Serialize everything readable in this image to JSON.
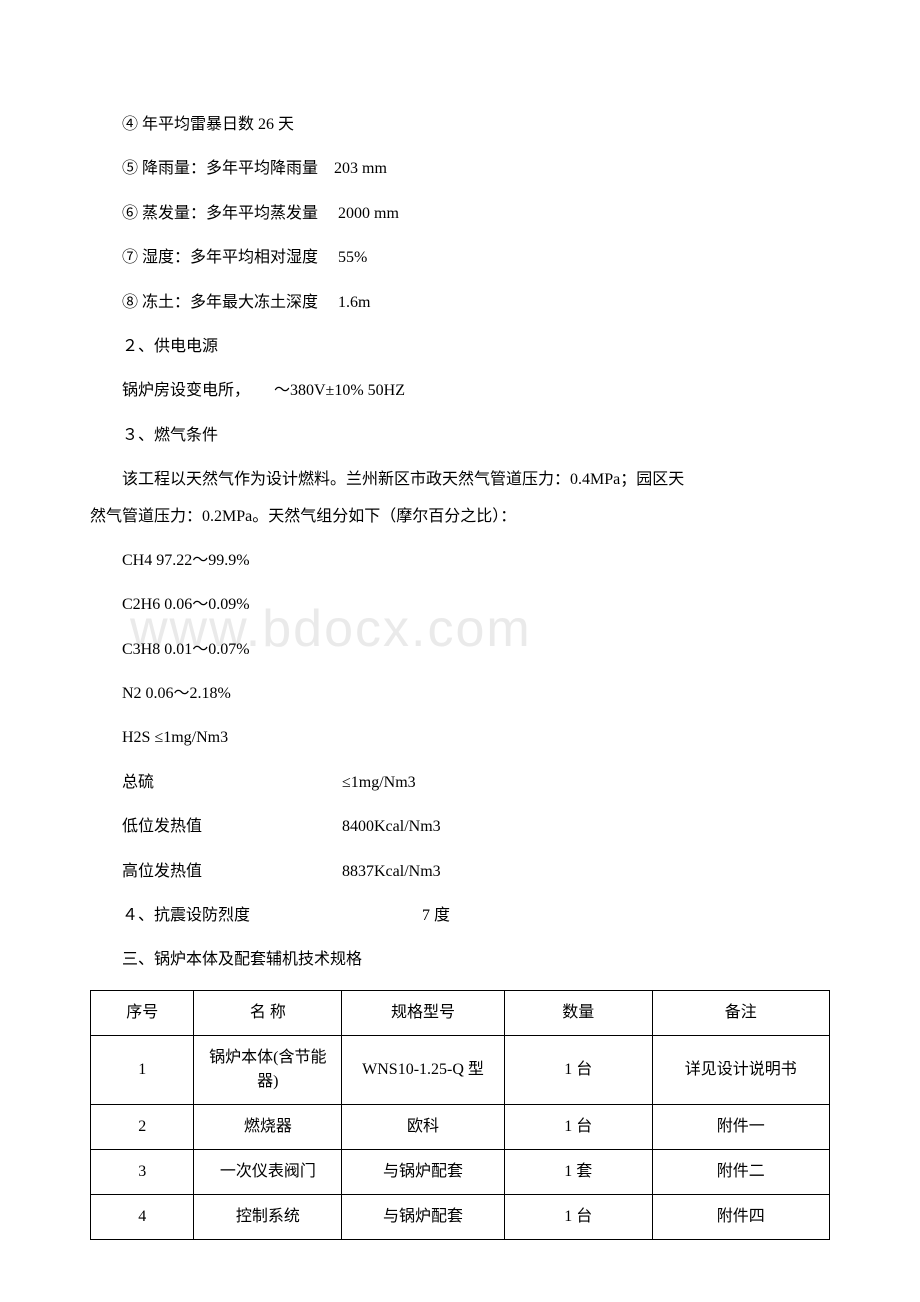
{
  "watermark": "www.bdocx.com",
  "lines": {
    "l1": "④ 年平均雷暴日数 26 天",
    "l2": "⑤ 降雨量：多年平均降雨量　203 mm",
    "l3": "⑥ 蒸发量：多年平均蒸发量　 2000 mm",
    "l4": "⑦ 湿度：多年平均相对湿度　 55%",
    "l5": "⑧ 冻土：多年最大冻土深度　 1.6m",
    "l6": "２、供电电源",
    "l7": "锅炉房设变电所，　　～380V±10% 50HZ",
    "l8": "３、燃气条件",
    "l9a": "该工程以天然气作为设计燃料。兰州新区市政天然气管道压力：0.4MPa；园区天",
    "l9b": "然气管道压力：0.2MPa。天然气组分如下（摩尔百分之比）：",
    "l10": "CH4 97.22～99.9%",
    "l11": "C2H6 0.06～0.09%",
    "l12": "C3H8 0.01～0.07%",
    "l13": "N2  0.06～2.18%",
    "l14": "H2S ≤1mg/Nm3"
  },
  "split": {
    "s1l": "总硫",
    "s1r": "≤1mg/Nm3",
    "s2l": "低位发热值",
    "s2r": "8400Kcal/Nm3",
    "s3l": "高位发热值",
    "s3r": "8837Kcal/Nm3",
    "s4l": "４、抗震设防烈度",
    "s4r": "　　　　　7 度"
  },
  "section3": "三、锅炉本体及配套辅机技术规格",
  "table": {
    "headers": {
      "h1": "序号",
      "h2": "名 称",
      "h3": "规格型号",
      "h4": "数量",
      "h5": "备注"
    },
    "rows": [
      {
        "c1": "1",
        "c2": "锅炉本体(含节能器)",
        "c3": "WNS10-1.25-Q 型",
        "c4": "1 台",
        "c5": "详见设计说明书"
      },
      {
        "c1": "2",
        "c2": "燃烧器",
        "c3": "欧科",
        "c4": "1 台",
        "c5": "附件一"
      },
      {
        "c1": "3",
        "c2": "一次仪表阀门",
        "c3": "与锅炉配套",
        "c4": "1 套",
        "c5": "附件二"
      },
      {
        "c1": "4",
        "c2": "控制系统",
        "c3": "与锅炉配套",
        "c4": "1 台",
        "c5": "附件四"
      }
    ]
  }
}
